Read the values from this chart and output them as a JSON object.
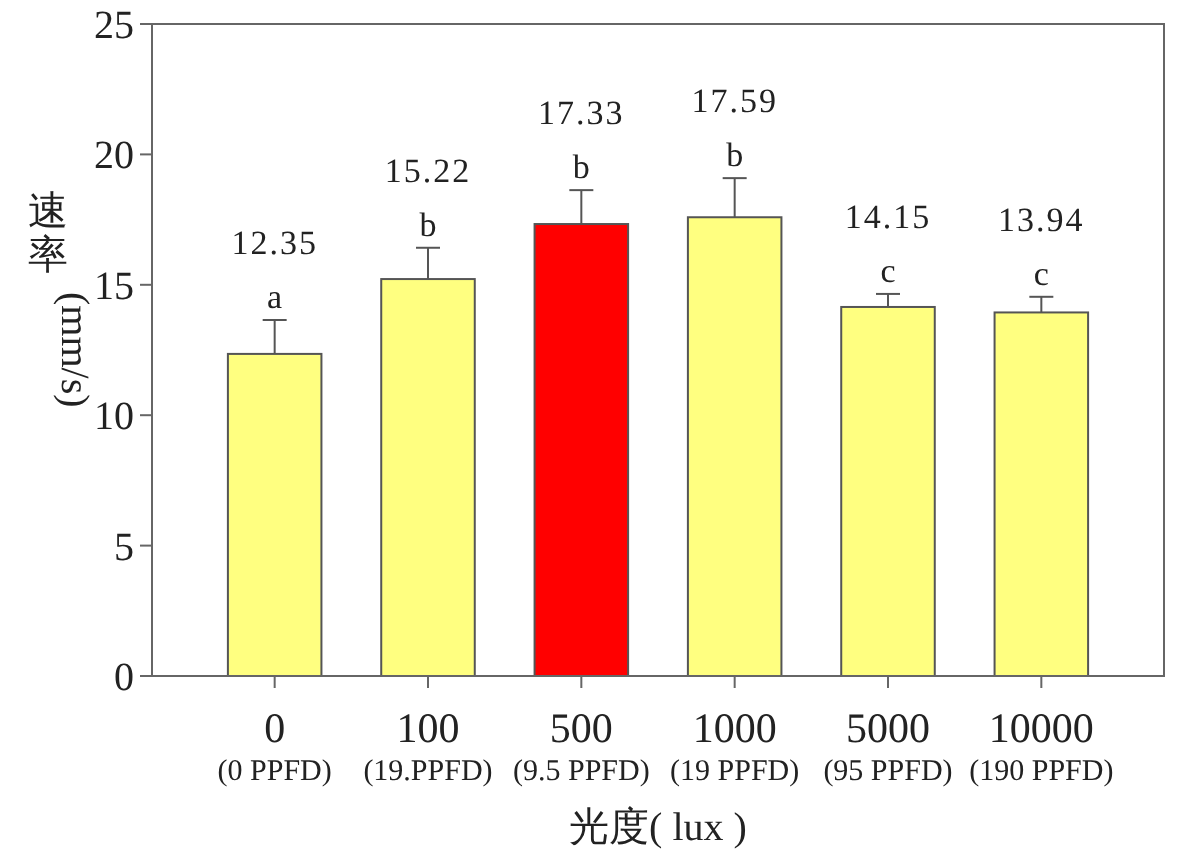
{
  "chart_data": {
    "type": "bar",
    "xlabel": "光度( lux )",
    "ylabel": "速率 (mm/s)",
    "categories": [
      "0\n(0 PPFD)",
      "100\n(19.PPFD)",
      "500\n(9.5 PPFD)",
      "1000\n(19 PPFD)",
      "5000\n(95 PPFD)",
      "10000\n(190 PPFD)"
    ],
    "values": [
      12.35,
      15.22,
      17.33,
      17.59,
      14.15,
      13.94
    ],
    "colors": [
      "#ffff80",
      "#ffff80",
      "#ff0000",
      "#ffff80",
      "#ffff80",
      "#ffff80"
    ],
    "errors": [
      1.3,
      1.2,
      1.3,
      1.5,
      0.5,
      0.6
    ],
    "data_labels": true,
    "annotations": [
      "a",
      "b",
      "b",
      "b",
      "c",
      "c"
    ],
    "ylim": [
      0,
      25
    ],
    "yticks": [
      0,
      5,
      10,
      15,
      20,
      25
    ],
    "grid": false
  }
}
